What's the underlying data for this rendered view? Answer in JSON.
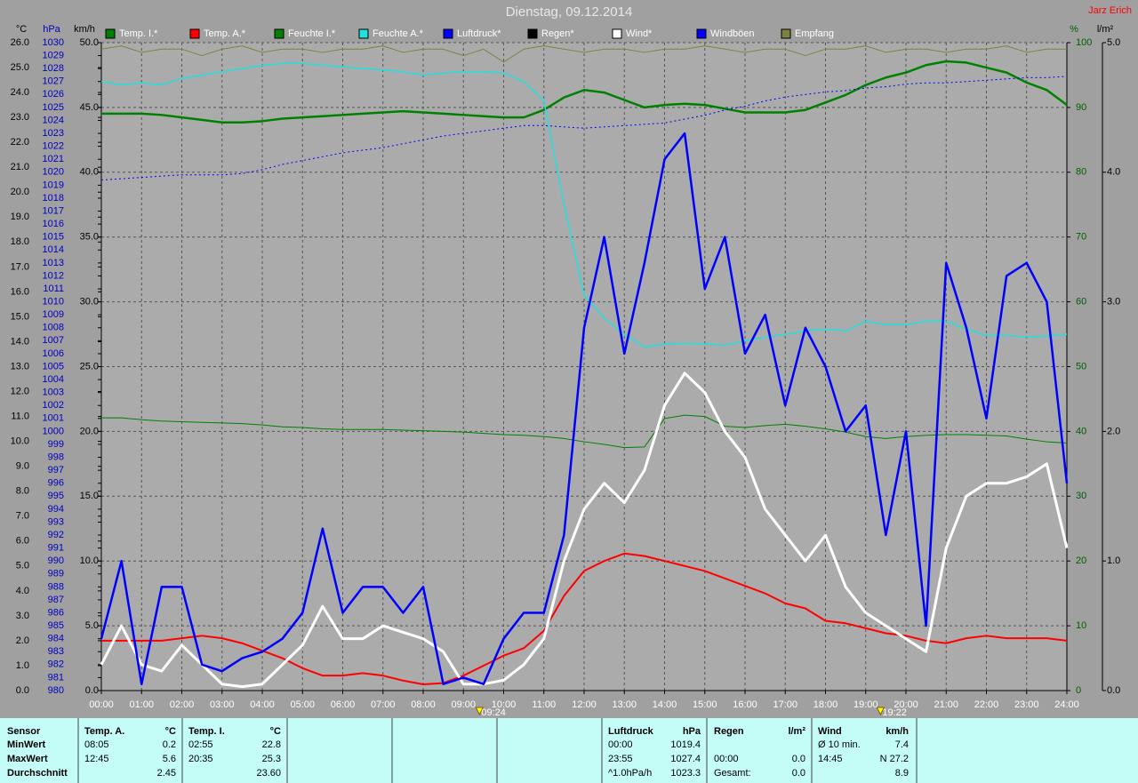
{
  "chart_data": {
    "type": "line",
    "title": "Dienstag, 09.12.2014",
    "author": "Jarz Erich",
    "x": [
      0,
      0.5,
      1,
      1.5,
      2,
      2.5,
      3,
      3.5,
      4,
      4.5,
      5,
      5.5,
      6,
      6.5,
      7,
      7.5,
      8,
      8.5,
      9,
      9.5,
      10,
      10.5,
      11,
      11.5,
      12,
      12.5,
      13,
      13.5,
      14,
      14.5,
      15,
      15.5,
      16,
      16.5,
      17,
      17.5,
      18,
      18.5,
      19,
      19.5,
      20,
      20.5,
      21,
      21.5,
      22,
      22.5,
      23,
      23.5,
      24
    ],
    "xlim": [
      0,
      24
    ],
    "xticks": [
      {
        "value": 0,
        "label": "00:00"
      },
      {
        "value": 1,
        "label": "01:00"
      },
      {
        "value": 2,
        "label": "02:00"
      },
      {
        "value": 3,
        "label": "03:00"
      },
      {
        "value": 4,
        "label": "04:00"
      },
      {
        "value": 5,
        "label": "05:00"
      },
      {
        "value": 6,
        "label": "06:00"
      },
      {
        "value": 7,
        "label": "07:00"
      },
      {
        "value": 8,
        "label": "08:00"
      },
      {
        "value": 9,
        "label": "09:00"
      },
      {
        "value": 10,
        "label": "10:00"
      },
      {
        "value": 11,
        "label": "11:00"
      },
      {
        "value": 12,
        "label": "12:00"
      },
      {
        "value": 13,
        "label": "13:00"
      },
      {
        "value": 14,
        "label": "14:00"
      },
      {
        "value": 15,
        "label": "15:00"
      },
      {
        "value": 16,
        "label": "16:00"
      },
      {
        "value": 17,
        "label": "17:00"
      },
      {
        "value": 18,
        "label": "18:00"
      },
      {
        "value": 19,
        "label": "19:00"
      },
      {
        "value": 20,
        "label": "20:00"
      },
      {
        "value": 21,
        "label": "21:00"
      },
      {
        "value": 22,
        "label": "22:00"
      },
      {
        "value": 23,
        "label": "23:00"
      },
      {
        "value": 24,
        "label": "24:00"
      }
    ],
    "markers": [
      {
        "value": 9.4,
        "label": "09:24"
      },
      {
        "value": 19.367,
        "label": "19:22"
      }
    ],
    "grid": true,
    "axes": [
      {
        "unit": "°C",
        "lim": [
          0,
          26
        ],
        "ticks": [
          {
            "value": 0,
            "label": "0.0"
          },
          {
            "value": 1,
            "label": "1.0"
          },
          {
            "value": 2,
            "label": "2.0"
          },
          {
            "value": 3,
            "label": "3.0"
          },
          {
            "value": 4,
            "label": "4.0"
          },
          {
            "value": 5,
            "label": "5.0"
          },
          {
            "value": 6,
            "label": "6.0"
          },
          {
            "value": 7,
            "label": "7.0"
          },
          {
            "value": 8,
            "label": "8.0"
          },
          {
            "value": 9,
            "label": "9.0"
          },
          {
            "value": 10,
            "label": "10.0"
          },
          {
            "value": 11,
            "label": "11.0"
          },
          {
            "value": 12,
            "label": "12.0"
          },
          {
            "value": 13,
            "label": "13.0"
          },
          {
            "value": 14,
            "label": "14.0"
          },
          {
            "value": 15,
            "label": "15.0"
          },
          {
            "value": 16,
            "label": "16.0"
          },
          {
            "value": 17,
            "label": "17.0"
          },
          {
            "value": 18,
            "label": "18.0"
          },
          {
            "value": 19,
            "label": "19.0"
          },
          {
            "value": 20,
            "label": "20.0"
          },
          {
            "value": 21,
            "label": "21.0"
          },
          {
            "value": 22,
            "label": "22.0"
          },
          {
            "value": 23,
            "label": "23.0"
          },
          {
            "value": 24,
            "label": "24.0"
          },
          {
            "value": 25,
            "label": "25.0"
          },
          {
            "value": 26,
            "label": "26.0"
          }
        ]
      },
      {
        "unit": "hPa",
        "lim": [
          980,
          1030
        ],
        "ticks": [
          980,
          981,
          982,
          983,
          984,
          985,
          986,
          987,
          988,
          989,
          990,
          991,
          992,
          993,
          994,
          995,
          996,
          997,
          998,
          999,
          1000,
          1001,
          1002,
          1003,
          1004,
          1005,
          1006,
          1007,
          1008,
          1009,
          1010,
          1011,
          1012,
          1013,
          1014,
          1015,
          1016,
          1017,
          1018,
          1019,
          1020,
          1021,
          1022,
          1023,
          1024,
          1025,
          1026,
          1027,
          1028,
          1029,
          1030
        ]
      },
      {
        "unit": "km/h",
        "lim": [
          0,
          50
        ],
        "ticks": [
          {
            "value": 0,
            "label": "0.0"
          },
          {
            "value": 5,
            "label": "5.0"
          },
          {
            "value": 10,
            "label": "10.0"
          },
          {
            "value": 15,
            "label": "15.0"
          },
          {
            "value": 20,
            "label": "20.0"
          },
          {
            "value": 25,
            "label": "25.0"
          },
          {
            "value": 30,
            "label": "30.0"
          },
          {
            "value": 35,
            "label": "35.0"
          },
          {
            "value": 40,
            "label": "40.0"
          },
          {
            "value": 45,
            "label": "45.0"
          },
          {
            "value": 50,
            "label": "50.0"
          }
        ]
      },
      {
        "unit": "%",
        "lim": [
          0,
          100
        ],
        "ticks": [
          0,
          10,
          20,
          30,
          40,
          50,
          60,
          70,
          80,
          90,
          100
        ]
      },
      {
        "unit": "l/m²",
        "lim": [
          0,
          5
        ],
        "ticks": [
          {
            "value": 0,
            "label": "0.0"
          },
          {
            "value": 1,
            "label": "1.0"
          },
          {
            "value": 2,
            "label": "2.0"
          },
          {
            "value": 3,
            "label": "3.0"
          },
          {
            "value": 4,
            "label": "4.0"
          },
          {
            "value": 5,
            "label": "5.0"
          }
        ]
      }
    ],
    "series": [
      {
        "name": "Temp. I.*",
        "color": "#008000",
        "axis": 0,
        "values": [
          23.15,
          23.15,
          23.15,
          23.1,
          23.0,
          22.9,
          22.8,
          22.8,
          22.85,
          22.95,
          23.0,
          23.05,
          23.1,
          23.15,
          23.2,
          23.25,
          23.2,
          23.15,
          23.1,
          23.05,
          23.0,
          23.0,
          23.3,
          23.8,
          24.1,
          24.0,
          23.7,
          23.4,
          23.5,
          23.55,
          23.5,
          23.35,
          23.2,
          23.2,
          23.2,
          23.3,
          23.6,
          23.9,
          24.3,
          24.6,
          24.8,
          25.1,
          25.25,
          25.2,
          25.0,
          24.8,
          24.4,
          24.1,
          23.5
        ]
      },
      {
        "name": "Temp. A.*",
        "color": "#ff0000",
        "axis": 0,
        "values": [
          2.0,
          2.0,
          2.0,
          2.0,
          2.1,
          2.2,
          2.1,
          1.9,
          1.6,
          1.3,
          0.9,
          0.6,
          0.6,
          0.7,
          0.6,
          0.4,
          0.25,
          0.3,
          0.6,
          1.0,
          1.4,
          1.7,
          2.4,
          3.8,
          4.8,
          5.2,
          5.5,
          5.4,
          5.2,
          5.0,
          4.8,
          4.5,
          4.2,
          3.9,
          3.5,
          3.3,
          2.8,
          2.7,
          2.5,
          2.3,
          2.2,
          2.0,
          1.9,
          2.1,
          2.2,
          2.1,
          2.1,
          2.1,
          2.0
        ]
      },
      {
        "name": "Feuchte I.*",
        "color": "#008000",
        "axis": 3,
        "values": [
          42.1,
          42.1,
          41.8,
          41.6,
          41.5,
          41.4,
          41.3,
          41.2,
          41.0,
          40.7,
          40.6,
          40.4,
          40.3,
          40.3,
          40.3,
          40.2,
          40.1,
          40.0,
          39.9,
          39.7,
          39.5,
          39.4,
          39.2,
          38.9,
          38.4,
          38.0,
          37.5,
          37.6,
          42.0,
          42.5,
          42.3,
          40.8,
          40.6,
          40.9,
          41.1,
          40.8,
          40.4,
          39.9,
          39.2,
          38.9,
          39.2,
          39.4,
          39.5,
          39.5,
          39.4,
          39.3,
          38.8,
          38.4,
          38.2
        ]
      },
      {
        "name": "Feuchte A.*",
        "color": "#20e0e0",
        "axis": 3,
        "values": [
          94,
          93.5,
          93.8,
          93.5,
          94.5,
          95,
          95.5,
          96,
          96.5,
          96.8,
          96.8,
          96.5,
          96.3,
          96,
          95.8,
          95.5,
          95,
          95.3,
          95.5,
          95.5,
          95.3,
          94,
          91,
          75,
          61,
          57.5,
          55,
          53,
          53.5,
          53.6,
          53.5,
          53.3,
          54,
          54.5,
          55,
          55.5,
          55.8,
          55.5,
          57,
          56.5,
          56.5,
          57,
          57,
          55.8,
          54.8,
          54.8,
          54.6,
          54.7,
          55
        ]
      },
      {
        "name": "Luftdruck*",
        "color": "#0000ff",
        "axis": 1,
        "values": [
          1019.4,
          1019.5,
          1019.6,
          1019.7,
          1019.8,
          1019.8,
          1019.8,
          1019.9,
          1020.2,
          1020.6,
          1020.9,
          1021.2,
          1021.5,
          1021.7,
          1021.9,
          1022.2,
          1022.5,
          1022.8,
          1023.0,
          1023.2,
          1023.4,
          1023.6,
          1023.6,
          1023.5,
          1023.4,
          1023.5,
          1023.6,
          1023.7,
          1023.8,
          1024.1,
          1024.4,
          1024.8,
          1025.1,
          1025.5,
          1025.8,
          1026.0,
          1026.2,
          1026.3,
          1026.5,
          1026.6,
          1026.8,
          1026.9,
          1026.9,
          1027.0,
          1027.1,
          1027.2,
          1027.3,
          1027.3,
          1027.4
        ]
      },
      {
        "name": "Regen*",
        "color": "#000000",
        "axis": 4,
        "values": [
          0,
          0,
          0,
          0,
          0,
          0,
          0,
          0,
          0,
          0,
          0,
          0,
          0,
          0,
          0,
          0,
          0,
          0,
          0,
          0,
          0,
          0,
          0,
          0,
          0,
          0,
          0,
          0,
          0,
          0,
          0,
          0,
          0,
          0,
          0,
          0,
          0,
          0,
          0,
          0,
          0,
          0,
          0,
          0,
          0,
          0,
          0,
          0,
          0
        ]
      },
      {
        "name": "Wind*",
        "color": "#ffffff",
        "axis": 2,
        "values": [
          2,
          5,
          2,
          1.5,
          3.5,
          2,
          0.5,
          0.3,
          0.5,
          2,
          3.5,
          6.5,
          4,
          4,
          5,
          4.5,
          4,
          3,
          0.5,
          0.5,
          0.8,
          2,
          4,
          10,
          14,
          16,
          14.5,
          17,
          22,
          24.5,
          23,
          20,
          18,
          14,
          12,
          10,
          12,
          8,
          6,
          5,
          4,
          3,
          11,
          15,
          16,
          16,
          16.5,
          17.5,
          11
        ]
      },
      {
        "name": "Windböen",
        "color": "#0000ff",
        "axis": 2,
        "values": [
          4,
          10,
          0.5,
          8,
          8,
          2,
          1.5,
          2.5,
          3,
          4,
          6,
          12.5,
          6,
          8,
          8,
          6,
          8,
          0.5,
          1,
          0.5,
          4,
          6,
          6,
          12,
          28,
          35,
          26,
          33,
          41,
          43,
          31,
          35,
          26,
          29,
          22,
          28,
          25,
          20,
          22,
          12,
          20,
          5,
          33,
          28,
          21,
          32,
          33,
          30,
          16
        ]
      },
      {
        "name": "Empfang",
        "color": "#808040",
        "axis": 3,
        "values": [
          99,
          99.5,
          98.5,
          99,
          99,
          98,
          99,
          99.5,
          98.5,
          99,
          99,
          98.5,
          99,
          99,
          99.5,
          98.5,
          99,
          99,
          98,
          99,
          97,
          99,
          99.5,
          99,
          98.5,
          99,
          99,
          98.5,
          99,
          99,
          99.5,
          99,
          98.5,
          99,
          99,
          98,
          99,
          99,
          99.5,
          98.5,
          99,
          99,
          98.5,
          99,
          99,
          99.5,
          98.5,
          99,
          99
        ]
      }
    ]
  },
  "table": {
    "rows": [
      [
        "Sensor",
        "Temp. A.",
        "°C",
        "Temp. I.",
        "°C",
        "Luftdruck",
        "hPa",
        "Regen",
        "l/m²",
        "Wind",
        "km/h"
      ],
      [
        "MinWert",
        "08:05",
        "0.2",
        "02:55",
        "22.8",
        "00:00",
        "1019.4",
        null,
        null,
        "Ø 10 min.",
        "7.4"
      ],
      [
        "MaxWert",
        "12:45",
        "5.6",
        "20:35",
        "25.3",
        "23:55",
        "1027.4",
        "00:00",
        "0.0",
        "14:45",
        "N 27.2"
      ],
      [
        "Durchschnitt",
        null,
        "2.45",
        null,
        "23.60",
        "^1.0hPa/h",
        "1023.3",
        "Gesamt:",
        "0.0",
        null,
        "8.9"
      ]
    ]
  }
}
